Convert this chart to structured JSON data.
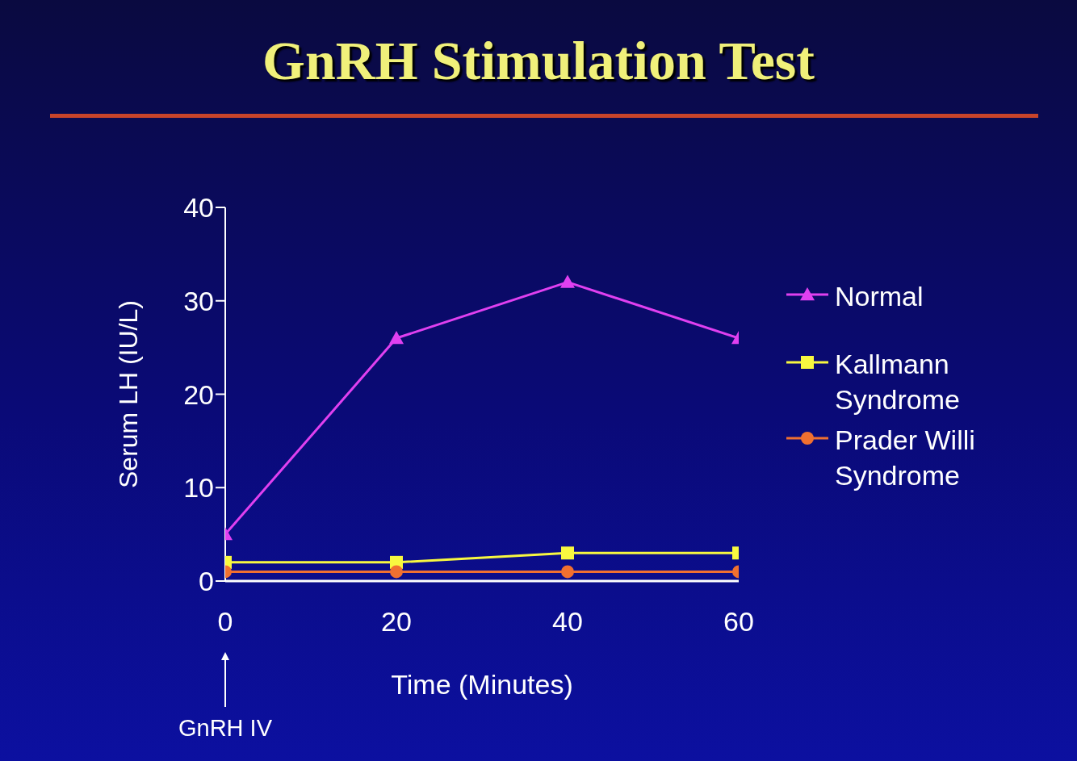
{
  "chart_data": {
    "type": "line",
    "title": "GnRH Stimulation Test",
    "xlabel": "Time (Minutes)",
    "ylabel": "Serum LH (IU/L)",
    "x": [
      0,
      20,
      40,
      60
    ],
    "series": [
      {
        "name": "Normal",
        "color": "#e040f0",
        "marker": "triangle",
        "values": [
          5,
          26,
          32,
          26
        ]
      },
      {
        "name": "Kallmann Syndrome",
        "color": "#f8f840",
        "marker": "square",
        "values": [
          2,
          2,
          3,
          3
        ]
      },
      {
        "name": "Prader Willi Syndrome",
        "color": "#f07030",
        "marker": "circle",
        "values": [
          1,
          1,
          1,
          1
        ]
      }
    ],
    "xlim": [
      0,
      60
    ],
    "xticks": [
      0,
      20,
      40,
      60
    ],
    "ylim": [
      0,
      40
    ],
    "yticks": [
      0,
      10,
      20,
      30,
      40
    ],
    "grid": false,
    "legend": "right",
    "line_style": "solid",
    "annotations": [
      "GnRH IV"
    ]
  }
}
